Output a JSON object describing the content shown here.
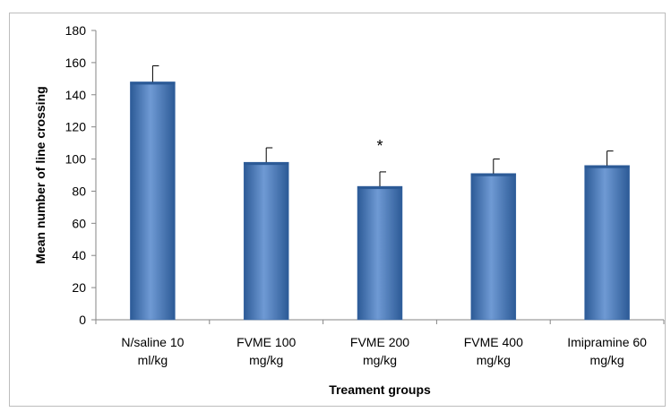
{
  "chart_data": {
    "type": "bar",
    "title": "",
    "xlabel": "Treament groups",
    "ylabel": "Mean number of line crossing",
    "categories": [
      [
        "N/saline 10",
        "ml/kg"
      ],
      [
        "FVME 100",
        "mg/kg"
      ],
      [
        "FVME 200",
        "mg/kg"
      ],
      [
        "FVME 400",
        "mg/kg"
      ],
      [
        "Imipramine 60",
        "mg/kg"
      ]
    ],
    "values": [
      148,
      98,
      83,
      91,
      96
    ],
    "errors": [
      10,
      9,
      9,
      9,
      9
    ],
    "annotations": [
      "",
      "",
      "*",
      "",
      ""
    ],
    "ylim": [
      0,
      180
    ],
    "yticks": [
      "0",
      "20",
      "40",
      "60",
      "80",
      "100",
      "120",
      "140",
      "160",
      "180"
    ],
    "grid": false,
    "legend": "none",
    "bar_color": "#4a7ebb",
    "bar_color_light": "#6f9ad4",
    "bar_color_dark": "#2c5a96"
  }
}
